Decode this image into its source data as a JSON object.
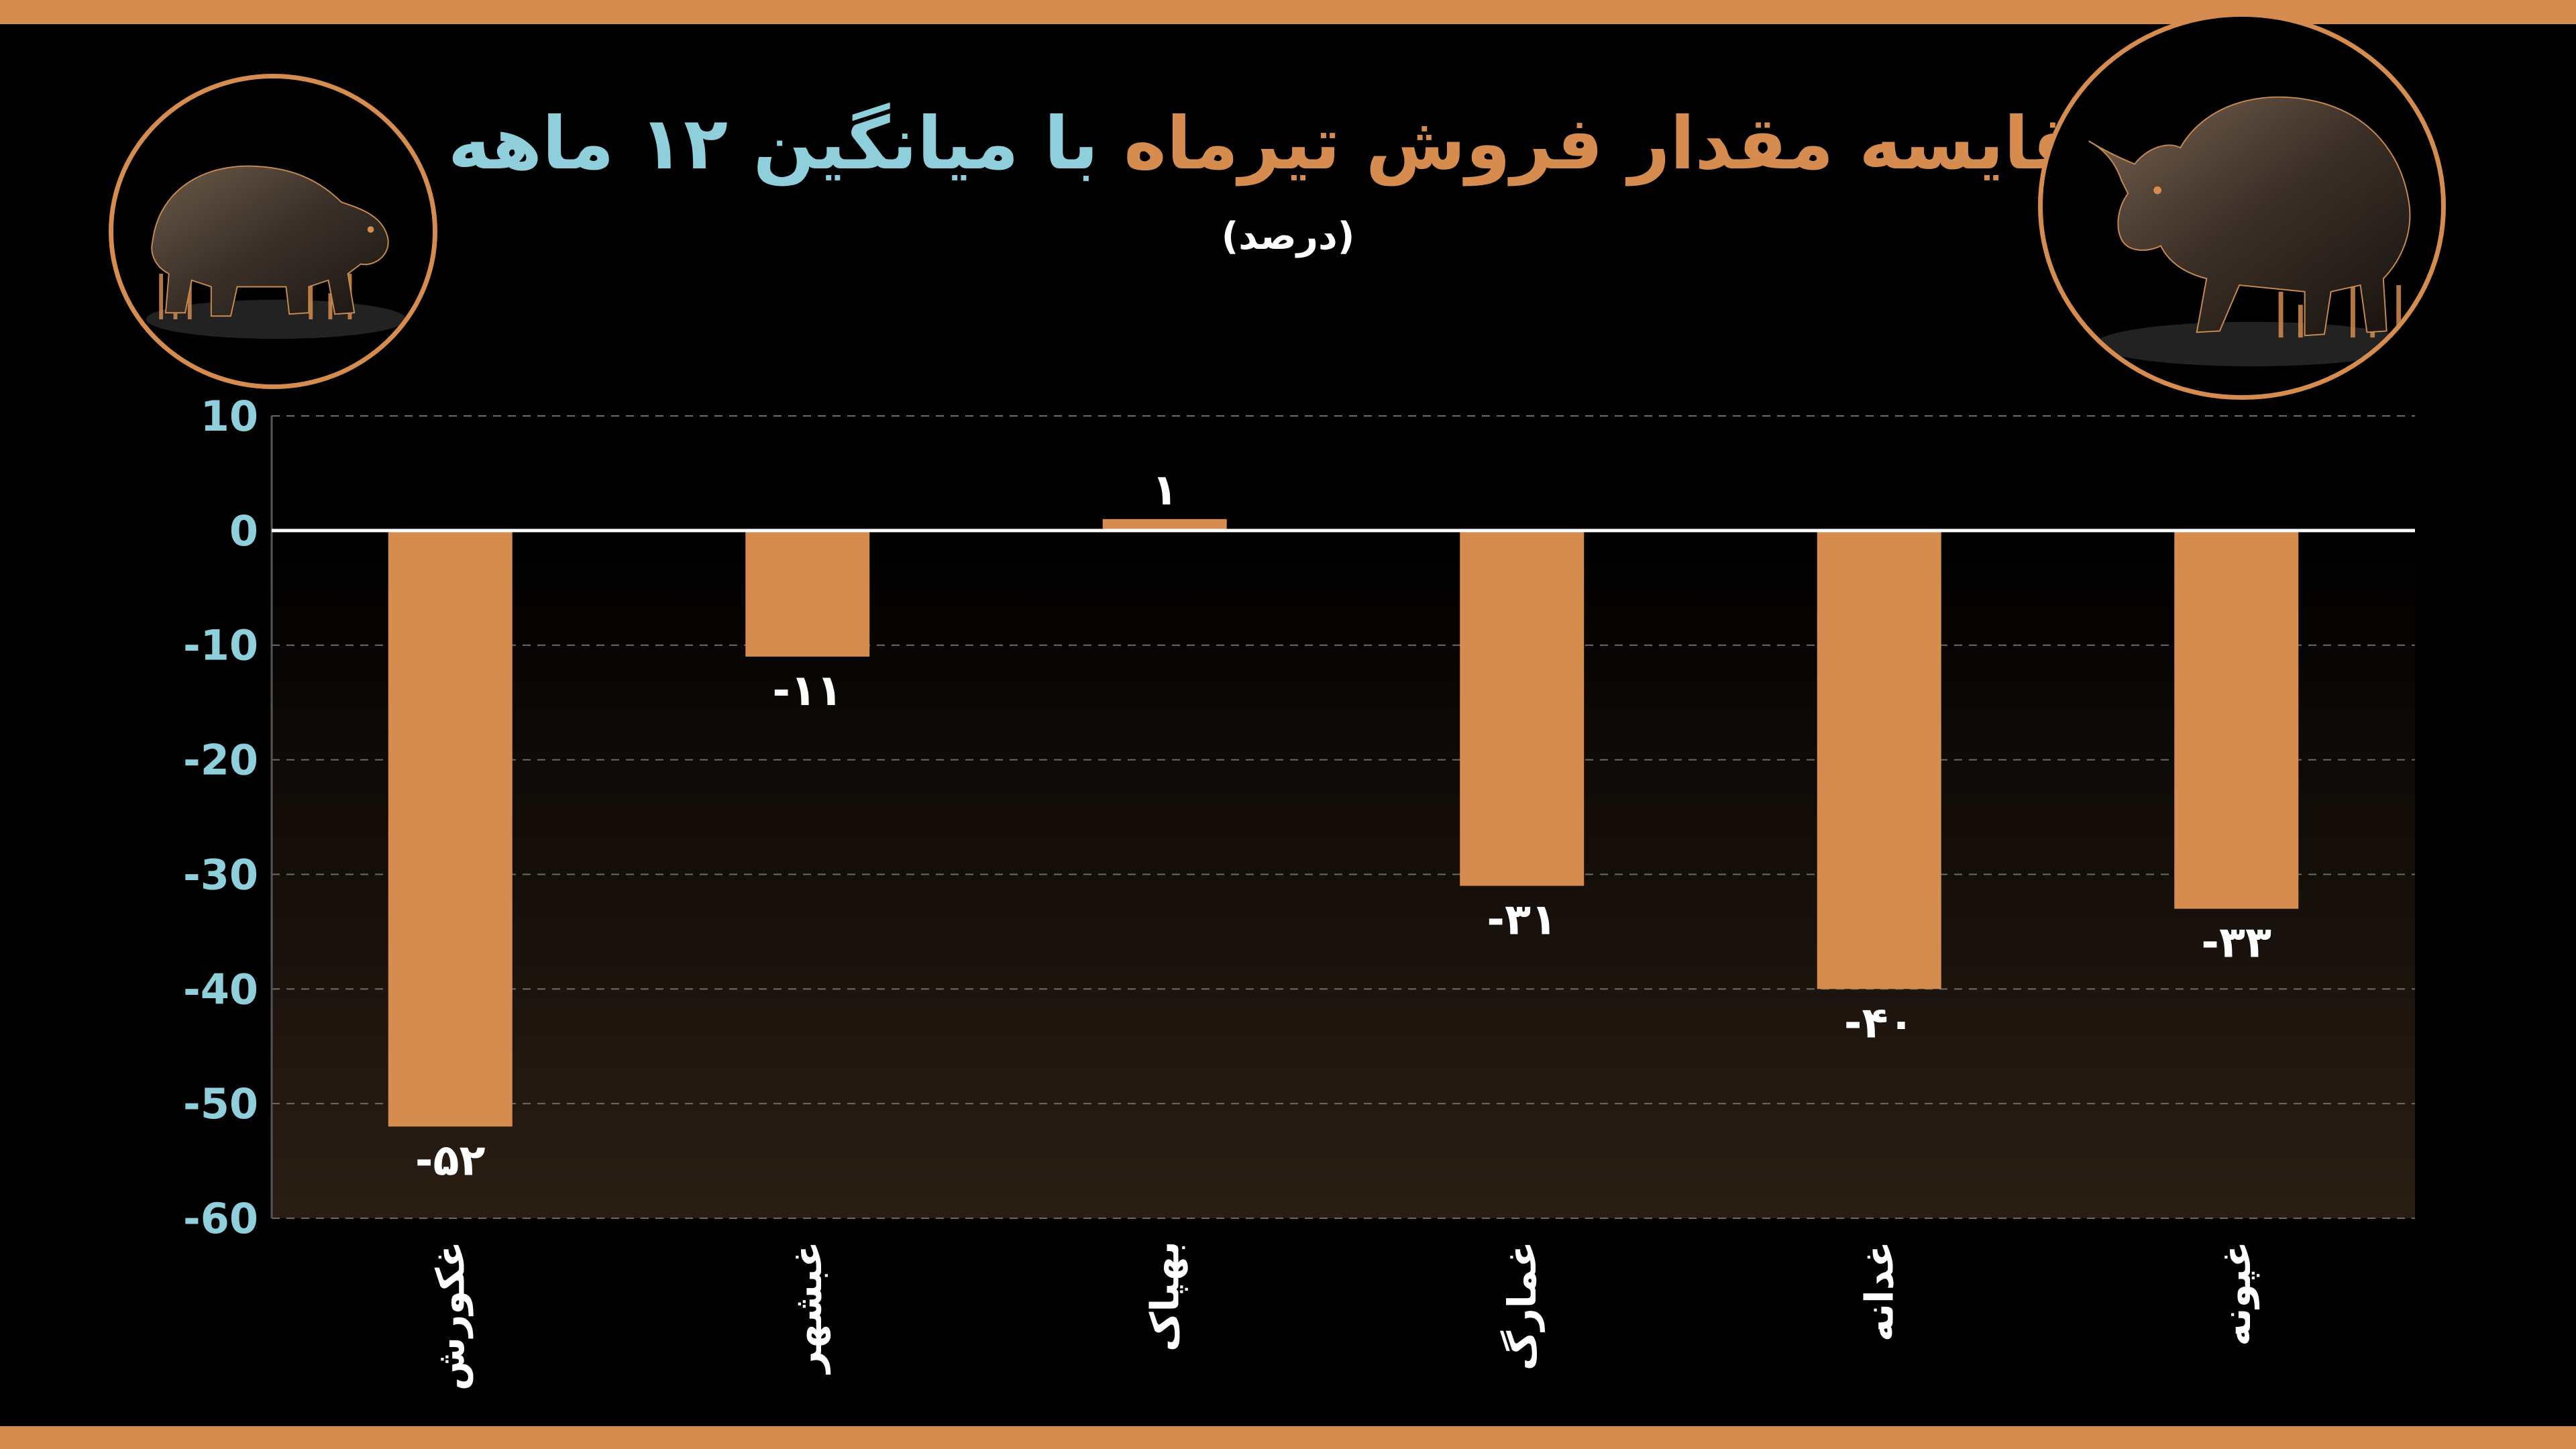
{
  "title": {
    "part1": "مقایسه مقدار فروش",
    "part2": "تیرماه",
    "part3": "با میانگین ۱۲ ماهه"
  },
  "subtitle": "(درصد)",
  "colors": {
    "frame": "#d58c4e",
    "bar": "#d58c4e",
    "title_orange": "#d58c4e",
    "title_cyan": "#8fcfdc",
    "axis_tick": "#8fcfdc",
    "label": "#ffffff",
    "gridline": "#6a6a6a"
  },
  "icons": {
    "left": "bear-icon",
    "right": "bull-icon"
  },
  "chart_data": {
    "type": "bar",
    "categories": [
      "غکورش",
      "غبشهر",
      "بهپاک",
      "غمارگ",
      "غدانه",
      "غپونه"
    ],
    "values": [
      -52,
      -11,
      1,
      -31,
      -40,
      -33
    ],
    "value_labels": [
      "-۵۲",
      "-۱۱",
      "۱",
      "-۳۱",
      "-۴۰",
      "-۳۳"
    ],
    "title": "مقایسه مقدار فروش تیرماه با میانگین ۱۲ ماهه",
    "subtitle": "(درصد)",
    "xlabel": "",
    "ylabel": "",
    "ylim": [
      -60,
      10
    ],
    "yticks": [
      10,
      0,
      -10,
      -20,
      -30,
      -40,
      -50,
      -60
    ],
    "ytick_labels": [
      "10",
      "0",
      "-10",
      "-20",
      "-30",
      "-40",
      "-50",
      "-60"
    ],
    "grid": true,
    "legend": "none"
  }
}
